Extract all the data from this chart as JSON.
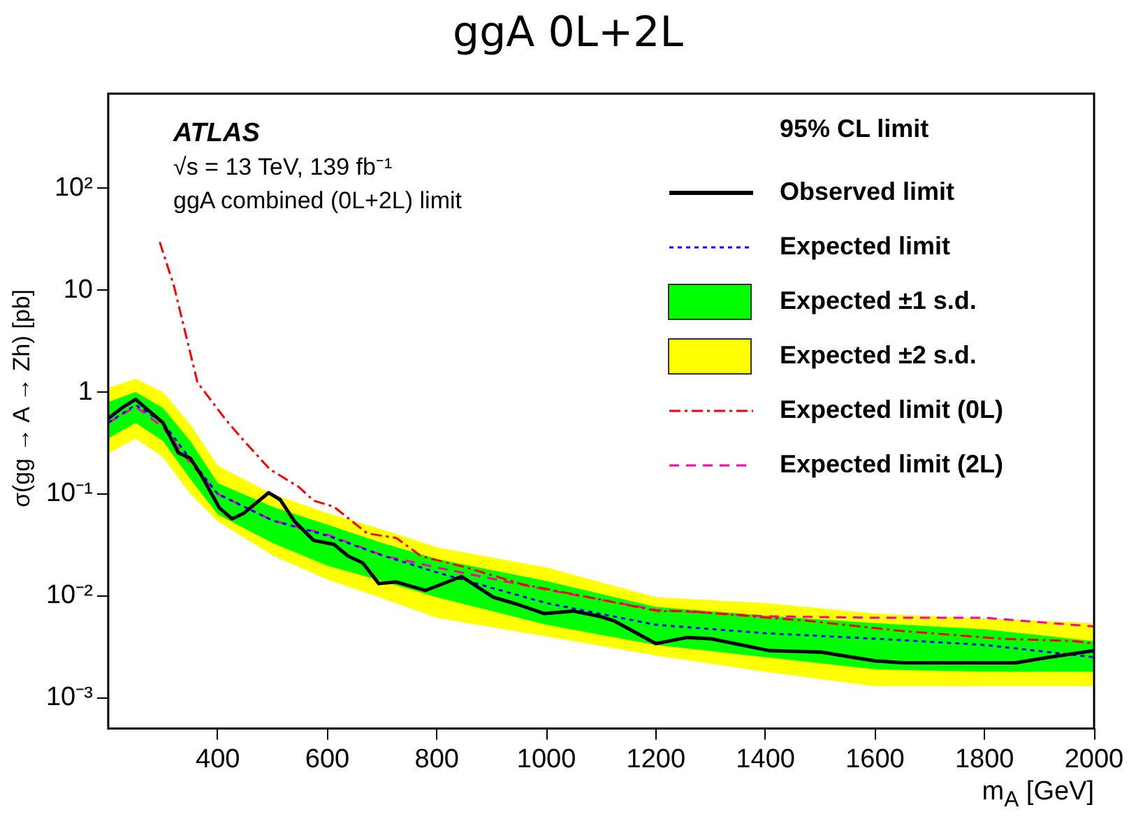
{
  "chart_data": {
    "type": "line",
    "title": "ggA 0L+2L",
    "xlabel": "m$_{A}$ [GeV]",
    "ylabel": "σ(gg → A → Zh) [pb]",
    "legend_title": "95% CL limit",
    "legend": "top right",
    "grid": false,
    "log": "y",
    "annotations": [
      "ATLAS",
      "√s = 13 TeV, 139 fb⁻¹",
      "ggA combined (0L+2L) limit"
    ],
    "xlim": [
      200,
      2000
    ],
    "xticks": [
      400,
      600,
      800,
      1000,
      1200,
      1400,
      1600,
      1800,
      2000
    ],
    "ylim": [
      0.0005,
      850
    ],
    "yticks": [
      {
        "value": 0.001,
        "label": "10⁻³"
      },
      {
        "value": 0.01,
        "label": "10⁻²"
      },
      {
        "value": 0.1,
        "label": "10⁻¹"
      },
      1,
      10,
      {
        "value": 100,
        "label": "10²"
      }
    ],
    "series": [
      {
        "name": "Observed limit",
        "type": "line",
        "color": "#000000",
        "line_style": "solid",
        "x": [
          200,
          225,
          250,
          275,
          300,
          328,
          350,
          368,
          403,
          426,
          448,
          493,
          514,
          540,
          575,
          612,
          638,
          665,
          694,
          726,
          779,
          845,
          903,
          946,
          996,
          1049,
          1097,
          1123,
          1200,
          1256,
          1300,
          1407,
          1502,
          1600,
          1653,
          1857,
          1918,
          2000
        ],
        "values": [
          0.55,
          0.7,
          0.85,
          0.65,
          0.5,
          0.254,
          0.224,
          0.159,
          0.073,
          0.057,
          0.065,
          0.103,
          0.088,
          0.054,
          0.035,
          0.032,
          0.0246,
          0.021,
          0.0132,
          0.0137,
          0.0113,
          0.0155,
          0.0097,
          0.0083,
          0.0067,
          0.0071,
          0.0063,
          0.0057,
          0.0034,
          0.0039,
          0.0038,
          0.0029,
          0.0028,
          0.0023,
          0.0022,
          0.0022,
          0.0025,
          0.0029
        ]
      },
      {
        "name": "Expected limit",
        "type": "line",
        "color": "#0000ff",
        "line_style": "dotted",
        "x": [
          200,
          250,
          300,
          350,
          400,
          500,
          600,
          700,
          800,
          900,
          1000,
          1200,
          1400,
          1600,
          1800,
          2000
        ],
        "values": [
          0.5,
          0.75,
          0.5,
          0.22,
          0.1,
          0.055,
          0.039,
          0.025,
          0.017,
          0.012,
          0.0085,
          0.0052,
          0.0043,
          0.0038,
          0.0033,
          0.0025
        ]
      },
      {
        "name": "Expected ±1 s.d.",
        "type": "line",
        "color": "#00ff00",
        "x": [
          200,
          250,
          300,
          350,
          400,
          500,
          600,
          700,
          800,
          1000,
          1200,
          1400,
          1600,
          1800,
          2000
        ],
        "values": [
          null,
          null,
          null,
          null,
          null,
          null,
          null,
          null,
          null,
          null,
          null,
          null,
          null,
          null,
          null
        ],
        "lower": [
          0.35,
          0.5,
          0.33,
          0.14,
          0.063,
          0.033,
          0.0198,
          0.014,
          0.0097,
          0.0052,
          0.0033,
          0.0025,
          0.0019,
          0.0018,
          0.0018
        ],
        "upper": [
          0.8,
          1.0,
          0.7,
          0.33,
          0.128,
          0.075,
          0.05,
          0.033,
          0.023,
          0.014,
          0.0078,
          0.0064,
          0.0054,
          0.0047,
          0.0036
        ]
      },
      {
        "name": "Expected ±2 s.d.",
        "type": "line",
        "color": "#ffff00",
        "x": [
          200,
          250,
          300,
          350,
          400,
          500,
          600,
          700,
          800,
          1000,
          1200,
          1400,
          1600,
          1800,
          2000
        ],
        "values": [
          null,
          null,
          null,
          null,
          null,
          null,
          null,
          null,
          null,
          null,
          null,
          null,
          null,
          null,
          null
        ],
        "lower": [
          0.25,
          0.35,
          0.23,
          0.1,
          0.054,
          0.025,
          0.0145,
          0.0095,
          0.0061,
          0.004,
          0.0026,
          0.0018,
          0.0013,
          0.0013,
          0.0013
        ],
        "upper": [
          1.1,
          1.35,
          1.0,
          0.48,
          0.19,
          0.1,
          0.065,
          0.045,
          0.03,
          0.019,
          0.0097,
          0.0085,
          0.0067,
          0.006,
          0.0054
        ]
      },
      {
        "name": "Expected limit (0L)",
        "type": "line",
        "color": "#ff0000",
        "line_style": "dashdot",
        "x": [
          294,
          320,
          363,
          413,
          442,
          495,
          548,
          575,
          612,
          673,
          726,
          771,
          858,
          956,
          1078,
          1203,
          1256,
          1476,
          1653,
          1830,
          1963,
          2000
        ],
        "values": [
          29.7,
          11,
          1.24,
          0.55,
          0.36,
          0.175,
          0.117,
          0.086,
          0.075,
          0.041,
          0.037,
          0.0246,
          0.0187,
          0.013,
          0.0097,
          0.0071,
          0.0071,
          0.0057,
          0.0045,
          0.0038,
          0.0036,
          0.0034
        ]
      },
      {
        "name": "Expected limit (2L)",
        "type": "line",
        "color": "#ff00aa",
        "line_style": "dashed",
        "x": [
          200,
          250,
          300,
          350,
          400,
          500,
          600,
          700,
          800,
          1000,
          1200,
          1400,
          1600,
          1800,
          2000
        ],
        "values": [
          0.5,
          0.72,
          0.45,
          0.2,
          0.1,
          0.055,
          0.04,
          0.025,
          0.019,
          0.0115,
          0.0073,
          0.0063,
          0.0061,
          0.0061,
          0.005
        ]
      }
    ]
  }
}
